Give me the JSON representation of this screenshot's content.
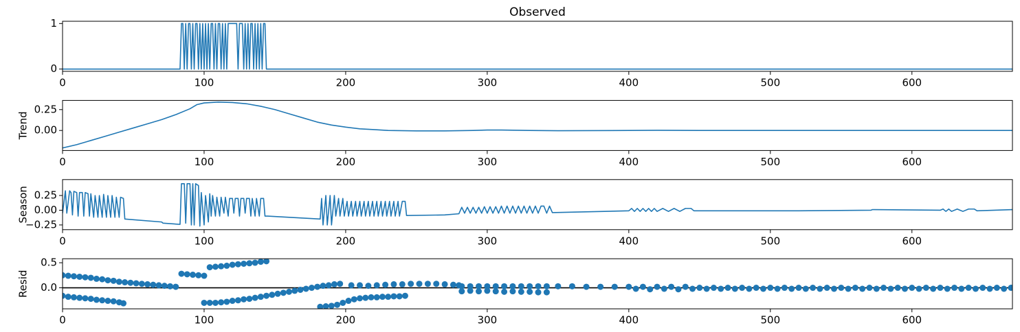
{
  "chart_data": [
    {
      "type": "line",
      "title": "Observed",
      "color": "#1f77b4",
      "x": [
        0,
        83,
        84,
        85,
        86,
        87,
        88,
        89,
        90,
        91,
        92,
        93,
        94,
        95,
        96,
        97,
        98,
        99,
        100,
        101,
        102,
        103,
        104,
        105,
        106,
        107,
        108,
        109,
        110,
        111,
        112,
        113,
        114,
        115,
        116,
        117,
        118,
        119,
        120,
        121,
        122,
        123,
        124,
        125,
        126,
        127,
        128,
        129,
        130,
        131,
        132,
        133,
        134,
        135,
        136,
        137,
        138,
        139,
        140,
        141,
        142,
        143,
        144,
        671
      ],
      "values": [
        0,
        0,
        1,
        1,
        0,
        1,
        0,
        1,
        1,
        0,
        1,
        0,
        1,
        1,
        0,
        1,
        0,
        1,
        0,
        1,
        0,
        1,
        0,
        1,
        1,
        0,
        1,
        0,
        1,
        1,
        0,
        1,
        0,
        1,
        0,
        1,
        1,
        1,
        1,
        1,
        1,
        1,
        0,
        1,
        1,
        1,
        0,
        1,
        0,
        1,
        0,
        1,
        1,
        0,
        1,
        0,
        1,
        0,
        1,
        0,
        1,
        1,
        0,
        0
      ],
      "xlim": [
        0,
        671
      ],
      "xticks": [
        0,
        100,
        200,
        300,
        400,
        500,
        600
      ],
      "ylim": [
        -0.05,
        1.05
      ],
      "yticks": [
        0,
        1
      ]
    },
    {
      "type": "line",
      "ylabel": "Trend",
      "color": "#1f77b4",
      "x": [
        0,
        10,
        20,
        30,
        40,
        50,
        60,
        70,
        80,
        90,
        95,
        100,
        110,
        120,
        130,
        140,
        150,
        160,
        170,
        180,
        190,
        200,
        210,
        220,
        230,
        250,
        270,
        290,
        300,
        310,
        330,
        350,
        400,
        420,
        450,
        500,
        600,
        671
      ],
      "values": [
        -0.21,
        -0.17,
        -0.12,
        -0.07,
        -0.02,
        0.03,
        0.08,
        0.13,
        0.19,
        0.26,
        0.31,
        0.33,
        0.34,
        0.335,
        0.32,
        0.29,
        0.25,
        0.2,
        0.15,
        0.1,
        0.065,
        0.04,
        0.02,
        0.01,
        0,
        -0.005,
        -0.005,
        0,
        0.005,
        0.005,
        0,
        -0.003,
        0,
        0.002,
        0,
        0,
        0,
        0
      ],
      "xlim": [
        0,
        671
      ],
      "xticks": [
        0,
        100,
        200,
        300,
        400,
        500,
        600
      ],
      "ylim": [
        -0.24,
        0.36
      ],
      "yticks": [
        {
          "value": 0,
          "label": "0.00"
        },
        {
          "value": 0.25,
          "label": "0.25"
        }
      ]
    },
    {
      "type": "line",
      "ylabel": "Season",
      "color": "#1f77b4",
      "x": [
        0,
        2,
        3,
        5,
        6,
        7,
        8,
        10,
        11,
        12,
        14,
        15,
        16,
        18,
        19,
        20,
        22,
        23,
        25,
        26,
        28,
        29,
        31,
        32,
        34,
        35,
        37,
        38,
        40,
        41,
        43,
        44,
        70,
        71,
        83,
        84,
        86,
        87,
        88,
        90,
        91,
        92,
        93,
        94,
        96,
        97,
        98,
        100,
        101,
        103,
        104,
        105,
        106,
        108,
        109,
        111,
        112,
        114,
        115,
        117,
        118,
        120,
        121,
        122,
        124,
        125,
        126,
        128,
        129,
        130,
        132,
        133,
        134,
        136,
        137,
        139,
        140,
        142,
        143,
        145,
        182,
        183,
        184,
        186,
        187,
        189,
        190,
        192,
        193,
        195,
        196,
        198,
        199,
        201,
        202,
        204,
        205,
        207,
        208,
        210,
        211,
        213,
        214,
        216,
        217,
        219,
        220,
        222,
        223,
        225,
        226,
        228,
        229,
        231,
        232,
        234,
        235,
        237,
        238,
        240,
        242,
        243,
        270,
        280,
        282,
        284,
        286,
        288,
        290,
        292,
        294,
        296,
        298,
        300,
        302,
        304,
        306,
        308,
        310,
        312,
        314,
        316,
        318,
        320,
        322,
        324,
        326,
        328,
        330,
        332,
        334,
        336,
        338,
        340,
        342,
        344,
        346,
        400,
        402,
        404,
        406,
        408,
        410,
        412,
        414,
        416,
        418,
        420,
        424,
        428,
        432,
        436,
        440,
        444,
        446,
        520,
        571,
        572,
        620,
        622,
        624,
        626,
        628,
        632,
        636,
        640,
        644,
        646,
        671
      ],
      "values": [
        -0.05,
        0.33,
        -0.05,
        0.33,
        0.3,
        -0.08,
        0.32,
        0.3,
        -0.1,
        0.3,
        0.3,
        -0.1,
        0.3,
        0.28,
        -0.1,
        0.28,
        -0.12,
        0.25,
        -0.12,
        0.25,
        -0.12,
        0.27,
        -0.12,
        0.25,
        -0.12,
        0.25,
        -0.12,
        0.22,
        -0.12,
        0.22,
        0.2,
        -0.15,
        -0.2,
        -0.22,
        -0.24,
        0.45,
        0.45,
        -0.22,
        0.45,
        0.45,
        -0.25,
        0.45,
        -0.25,
        0.45,
        0.42,
        -0.27,
        0.3,
        -0.25,
        0.25,
        -0.2,
        0.28,
        -0.1,
        0.25,
        -0.1,
        0.22,
        -0.1,
        0.22,
        -0.05,
        0.22,
        -0.1,
        0.2,
        0.2,
        -0.05,
        0.2,
        0.2,
        -0.1,
        0.2,
        0.2,
        -0.05,
        0.2,
        0.2,
        -0.1,
        0.2,
        -0.1,
        0.2,
        -0.1,
        0.2,
        0.2,
        -0.1,
        -0.1,
        -0.15,
        0.2,
        -0.25,
        0.25,
        -0.25,
        0.25,
        -0.25,
        0.25,
        -0.1,
        0.2,
        -0.1,
        0.2,
        -0.1,
        0.15,
        -0.1,
        0.15,
        -0.1,
        0.15,
        -0.1,
        0.15,
        -0.1,
        0.15,
        -0.1,
        0.15,
        -0.1,
        0.15,
        -0.1,
        0.15,
        -0.1,
        0.15,
        -0.1,
        0.15,
        -0.1,
        0.15,
        -0.1,
        0.15,
        -0.1,
        0.15,
        -0.1,
        0.15,
        0.15,
        -0.09,
        -0.08,
        -0.06,
        0.05,
        -0.05,
        0.05,
        -0.05,
        0.05,
        -0.05,
        0.05,
        -0.05,
        0.06,
        -0.05,
        0.06,
        -0.05,
        0.06,
        -0.05,
        0.07,
        -0.05,
        0.07,
        -0.05,
        0.07,
        -0.05,
        0.07,
        -0.05,
        0.07,
        -0.05,
        0.07,
        -0.05,
        0.07,
        -0.05,
        0.07,
        0.07,
        -0.05,
        0.07,
        -0.04,
        -0.01,
        0.03,
        -0.02,
        0.03,
        -0.02,
        0.03,
        -0.02,
        0.03,
        -0.02,
        0.03,
        -0.02,
        0.03,
        -0.02,
        0.03,
        -0.02,
        0.03,
        0.03,
        -0.01,
        -0.01,
        0,
        0.01,
        0,
        0.02,
        -0.02,
        0.02,
        -0.02,
        0.02,
        -0.02,
        0.02,
        0.02,
        -0.01,
        0.01
      ],
      "xlim": [
        0,
        671
      ],
      "xticks": [
        0,
        100,
        200,
        300,
        400,
        500,
        600
      ],
      "ylim": [
        -0.33,
        0.52
      ],
      "yticks": [
        {
          "value": -0.25,
          "label": "−0.25"
        },
        {
          "value": 0,
          "label": "0.00"
        },
        {
          "value": 0.25,
          "label": "0.25"
        }
      ]
    },
    {
      "type": "scatter",
      "ylabel": "Resid",
      "color": "#1f77b4",
      "hline": 0,
      "x": [
        0,
        4,
        8,
        12,
        16,
        20,
        24,
        28,
        32,
        36,
        40,
        44,
        48,
        52,
        56,
        60,
        64,
        68,
        72,
        76,
        80,
        0,
        4,
        8,
        12,
        16,
        20,
        24,
        28,
        32,
        36,
        40,
        43,
        84,
        88,
        92,
        96,
        100,
        100,
        104,
        108,
        104,
        108,
        112,
        116,
        120,
        124,
        128,
        132,
        136,
        140,
        144,
        112,
        116,
        120,
        124,
        128,
        132,
        136,
        140,
        144,
        148,
        152,
        156,
        160,
        164,
        168,
        172,
        176,
        180,
        184,
        188,
        192,
        196,
        182,
        186,
        190,
        194,
        198,
        202,
        206,
        210,
        214,
        218,
        222,
        226,
        230,
        234,
        238,
        242,
        204,
        210,
        216,
        222,
        228,
        234,
        240,
        246,
        252,
        258,
        264,
        270,
        276,
        280,
        282,
        288,
        294,
        300,
        306,
        312,
        318,
        324,
        330,
        336,
        342,
        282,
        288,
        294,
        300,
        306,
        312,
        318,
        324,
        330,
        336,
        342,
        350,
        360,
        370,
        380,
        390,
        400,
        405,
        415,
        425,
        435,
        445,
        410,
        420,
        430,
        440,
        450,
        460,
        470,
        480,
        490,
        500,
        510,
        520,
        530,
        540,
        550,
        560,
        570,
        580,
        590,
        600,
        610,
        620,
        630,
        640,
        650,
        660,
        670,
        455,
        465,
        475,
        485,
        495,
        505,
        515,
        525,
        535,
        545,
        555,
        565,
        575,
        585,
        595,
        605,
        615,
        625,
        635,
        645,
        655,
        665
      ],
      "values": [
        0.25,
        0.24,
        0.23,
        0.22,
        0.21,
        0.2,
        0.18,
        0.17,
        0.15,
        0.14,
        0.12,
        0.11,
        0.1,
        0.09,
        0.08,
        0.07,
        0.06,
        0.05,
        0.04,
        0.03,
        0.02,
        -0.16,
        -0.18,
        -0.19,
        -0.2,
        -0.21,
        -0.22,
        -0.24,
        -0.25,
        -0.26,
        -0.27,
        -0.29,
        -0.31,
        0.28,
        0.27,
        0.26,
        0.25,
        0.24,
        -0.3,
        -0.3,
        -0.3,
        0.41,
        0.42,
        0.43,
        0.44,
        0.46,
        0.47,
        0.48,
        0.49,
        0.5,
        0.52,
        0.53,
        -0.29,
        -0.28,
        -0.26,
        -0.25,
        -0.23,
        -0.22,
        -0.2,
        -0.18,
        -0.16,
        -0.14,
        -0.12,
        -0.1,
        -0.08,
        -0.06,
        -0.04,
        -0.02,
        0,
        0.02,
        0.04,
        0.05,
        0.07,
        0.08,
        -0.38,
        -0.37,
        -0.36,
        -0.34,
        -0.3,
        -0.26,
        -0.23,
        -0.21,
        -0.2,
        -0.19,
        -0.19,
        -0.18,
        -0.18,
        -0.17,
        -0.17,
        -0.16,
        0.05,
        0.05,
        0.04,
        0.05,
        0.06,
        0.07,
        0.07,
        0.08,
        0.08,
        0.08,
        0.08,
        0.07,
        0.06,
        0.05,
        0.03,
        0.03,
        0.03,
        0.03,
        0.03,
        0.03,
        0.03,
        0.03,
        0.03,
        0.03,
        0.03,
        -0.07,
        -0.06,
        -0.07,
        -0.06,
        -0.07,
        -0.08,
        -0.07,
        -0.08,
        -0.08,
        -0.09,
        -0.09,
        0.03,
        0.03,
        0.02,
        0.02,
        0.02,
        0.02,
        -0.02,
        -0.03,
        -0.02,
        -0.03,
        -0.02,
        0.02,
        0.02,
        0.02,
        0.02,
        0,
        0,
        0,
        0,
        0,
        0,
        0,
        0,
        0,
        0,
        0,
        0,
        0,
        0,
        0,
        0,
        0,
        0,
        0,
        0,
        0,
        0,
        0,
        -0.02,
        -0.02,
        -0.02,
        -0.02,
        -0.02,
        -0.02,
        -0.02,
        -0.02,
        -0.02,
        -0.02,
        -0.02,
        -0.02,
        -0.02,
        -0.02,
        -0.02,
        -0.02,
        -0.02,
        -0.02,
        -0.02,
        -0.02,
        -0.02,
        -0.02
      ],
      "xlim": [
        0,
        671
      ],
      "xticks": [
        0,
        100,
        200,
        300,
        400,
        500,
        600
      ],
      "ylim": [
        -0.42,
        0.58
      ],
      "yticks": [
        {
          "value": 0,
          "label": "0.0"
        },
        {
          "value": 0.5,
          "label": "0.5"
        }
      ]
    }
  ]
}
